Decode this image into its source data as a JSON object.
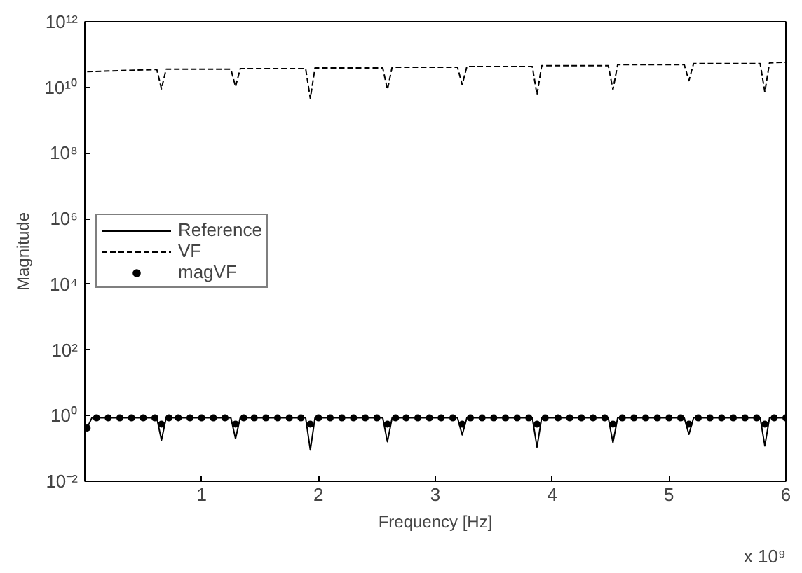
{
  "chart_data": {
    "type": "line",
    "xlabel": "Frequency [Hz]",
    "ylabel": "Magnitude",
    "annotations": [
      "x 10⁹"
    ],
    "log": "y",
    "grid": false,
    "legend": "left",
    "xlim": [
      0,
      6
    ],
    "xticks": [
      1,
      2,
      3,
      4,
      5,
      6
    ],
    "ylim": [
      0.01,
      1000000000000.0
    ],
    "yticks": [
      {
        "value": 0.01,
        "label": "10⁻²"
      },
      {
        "value": 1,
        "label": "10⁰"
      },
      {
        "value": 100,
        "label": "10²"
      },
      {
        "value": 10000,
        "label": "10⁴"
      },
      {
        "value": 1000000.0,
        "label": "10⁶"
      },
      {
        "value": 100000000.0,
        "label": "10⁸"
      },
      {
        "value": 10000000000.0,
        "label": "10¹⁰"
      },
      {
        "value": 1000000000000.0,
        "label": "10¹²"
      }
    ],
    "series": [
      {
        "name": "Reference",
        "color": "#000000",
        "line_style": "solid",
        "x": [
          0.02,
          0.06,
          0.616,
          0.656,
          0.696,
          1.25,
          1.29,
          1.33,
          1.89,
          1.93,
          1.97,
          2.55,
          2.59,
          2.63,
          3.19,
          3.23,
          3.27,
          3.83,
          3.87,
          3.91,
          4.48,
          4.52,
          4.56,
          5.13,
          5.17,
          5.21,
          5.78,
          5.82,
          5.86,
          6
        ],
        "values": [
          0.42,
          0.85,
          0.85,
          0.18,
          0.85,
          0.85,
          0.2,
          0.85,
          0.85,
          0.09,
          0.85,
          0.85,
          0.16,
          0.85,
          0.85,
          0.26,
          0.85,
          0.85,
          0.11,
          0.85,
          0.85,
          0.15,
          0.85,
          0.85,
          0.27,
          0.85,
          0.85,
          0.12,
          0.85,
          0.85
        ]
      },
      {
        "name": "VF",
        "color": "#000000",
        "line_style": "dashed",
        "x": [
          0.02,
          0.616,
          0.656,
          0.696,
          1.25,
          1.29,
          1.33,
          1.89,
          1.93,
          1.97,
          2.55,
          2.59,
          2.63,
          3.19,
          3.23,
          3.27,
          3.83,
          3.87,
          3.91,
          4.48,
          4.52,
          4.56,
          5.13,
          5.17,
          5.21,
          5.78,
          5.82,
          5.86,
          6
        ],
        "values": [
          30000000000.0,
          35000000000.0,
          9000000000.0,
          36000000000.0,
          36000000000.0,
          10500000000.0,
          37000000000.0,
          37000000000.0,
          4600000000.0,
          39000000000.0,
          39000000000.0,
          8500000000.0,
          41000000000.0,
          41000000000.0,
          12000000000.0,
          43000000000.0,
          43000000000.0,
          5900000000.0,
          46000000000.0,
          46000000000.0,
          8500000000.0,
          49000000000.0,
          49000000000.0,
          16000000000.0,
          53000000000.0,
          53000000000.0,
          7200000000.0,
          56000000000.0,
          58000000000.0
        ]
      },
      {
        "name": "magVF",
        "color": "#000000",
        "type": "scatter",
        "marker": "circle",
        "x": [
          0.02,
          0.1,
          0.2,
          0.3,
          0.4,
          0.5,
          0.6,
          0.656,
          0.72,
          0.8,
          0.9,
          1.0,
          1.1,
          1.2,
          1.29,
          1.36,
          1.45,
          1.55,
          1.65,
          1.75,
          1.85,
          1.93,
          2.0,
          2.1,
          2.2,
          2.3,
          2.4,
          2.5,
          2.59,
          2.66,
          2.75,
          2.85,
          2.95,
          3.05,
          3.15,
          3.23,
          3.3,
          3.4,
          3.5,
          3.6,
          3.7,
          3.8,
          3.87,
          3.94,
          4.05,
          4.15,
          4.25,
          4.35,
          4.45,
          4.52,
          4.6,
          4.7,
          4.8,
          4.9,
          5.0,
          5.1,
          5.17,
          5.25,
          5.35,
          5.45,
          5.55,
          5.65,
          5.75,
          5.82,
          5.9,
          6.0
        ],
        "values": [
          0.42,
          0.85,
          0.85,
          0.85,
          0.85,
          0.85,
          0.85,
          0.55,
          0.85,
          0.85,
          0.85,
          0.85,
          0.85,
          0.85,
          0.55,
          0.85,
          0.85,
          0.85,
          0.85,
          0.85,
          0.85,
          0.55,
          0.85,
          0.85,
          0.85,
          0.85,
          0.85,
          0.85,
          0.55,
          0.85,
          0.85,
          0.85,
          0.85,
          0.85,
          0.85,
          0.55,
          0.85,
          0.85,
          0.85,
          0.85,
          0.85,
          0.85,
          0.55,
          0.85,
          0.85,
          0.85,
          0.85,
          0.85,
          0.85,
          0.55,
          0.85,
          0.85,
          0.85,
          0.85,
          0.85,
          0.85,
          0.55,
          0.85,
          0.85,
          0.85,
          0.85,
          0.85,
          0.85,
          0.55,
          0.85,
          0.85
        ]
      }
    ]
  }
}
